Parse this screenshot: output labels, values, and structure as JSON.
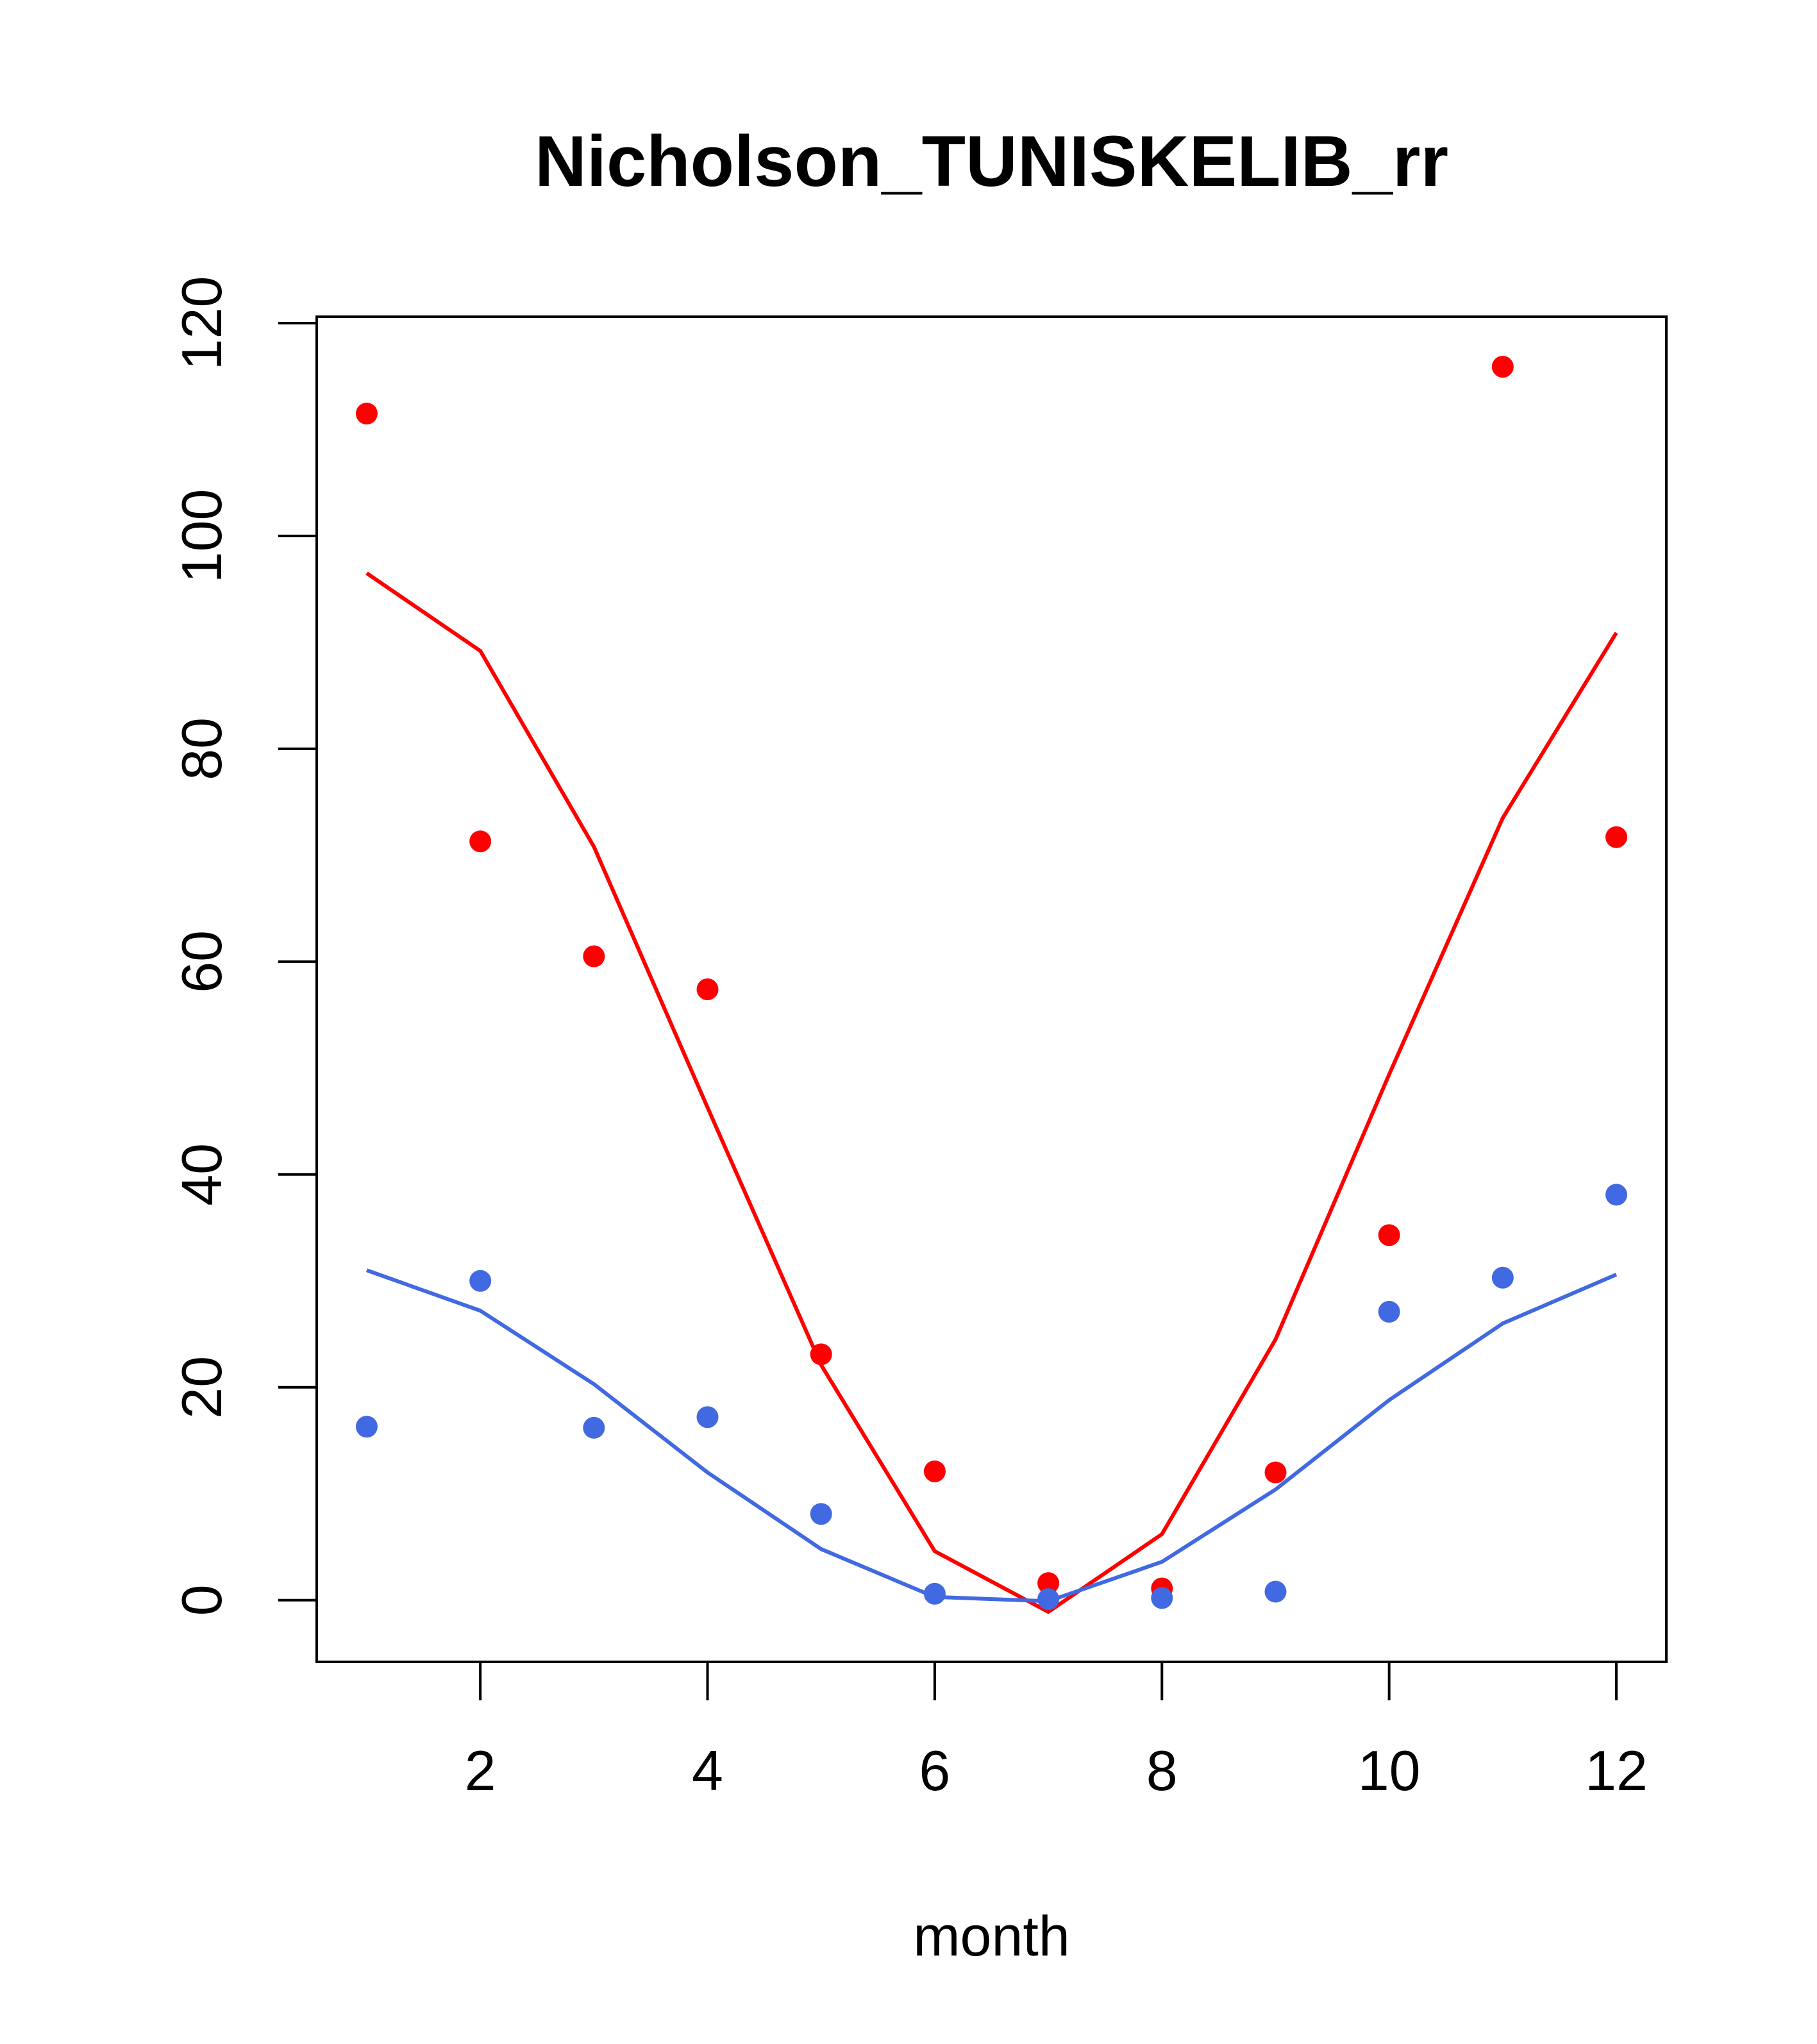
{
  "chart_data": {
    "type": "scatter",
    "title": "Nicholson_TUNISKELIB_rr",
    "xlabel": "month",
    "ylabel": "",
    "xlim": [
      0.56,
      12.44
    ],
    "ylim": [
      -5.8,
      120.6
    ],
    "xticks": [
      2,
      4,
      6,
      8,
      10,
      12
    ],
    "yticks": [
      0,
      20,
      40,
      60,
      80,
      100,
      120
    ],
    "grid": false,
    "legend": "none",
    "series": [
      {
        "mark": "points",
        "color": "#ff0000",
        "x": [
          1,
          2,
          3,
          4,
          5,
          6,
          7,
          8,
          9,
          10,
          11,
          12
        ],
        "values": [
          111.5,
          71.3,
          60.5,
          57.4,
          23.1,
          12.1,
          1.6,
          1.1,
          12.0,
          34.3,
          115.9,
          71.7
        ]
      },
      {
        "mark": "line",
        "color": "#ff0000",
        "x": [
          1,
          2,
          3,
          4,
          5,
          6,
          7,
          8,
          9,
          10,
          11,
          12
        ],
        "values": [
          96.5,
          89.2,
          70.8,
          46.3,
          22.1,
          4.6,
          -1.1,
          6.2,
          24.5,
          49.4,
          73.5,
          90.9
        ]
      },
      {
        "mark": "points",
        "color": "#4169e1",
        "x": [
          1,
          2,
          3,
          4,
          5,
          6,
          7,
          8,
          9,
          10,
          11,
          12
        ],
        "values": [
          16.3,
          30.0,
          16.2,
          17.2,
          8.1,
          0.6,
          0.1,
          0.2,
          0.8,
          27.1,
          30.3,
          38.1
        ]
      },
      {
        "mark": "line",
        "color": "#4169e1",
        "x": [
          1,
          2,
          3,
          4,
          5,
          6,
          7,
          8,
          9,
          10,
          11,
          12
        ],
        "values": [
          31.0,
          27.2,
          20.3,
          12.0,
          4.8,
          0.3,
          -0.1,
          3.6,
          10.4,
          18.8,
          26.0,
          30.6
        ]
      }
    ]
  }
}
